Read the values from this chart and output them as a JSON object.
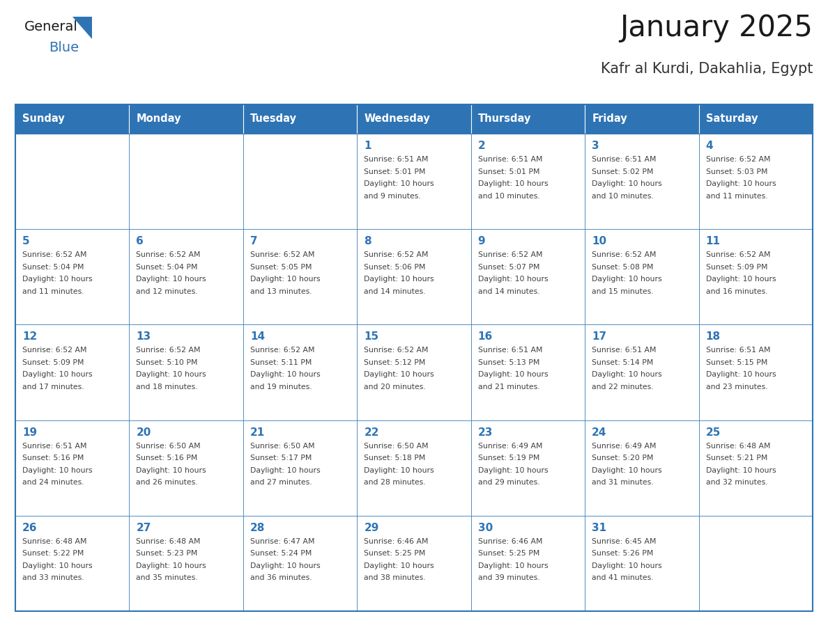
{
  "title": "January 2025",
  "subtitle": "Kafr al Kurdi, Dakahlia, Egypt",
  "days_of_week": [
    "Sunday",
    "Monday",
    "Tuesday",
    "Wednesday",
    "Thursday",
    "Friday",
    "Saturday"
  ],
  "header_bg": "#2E74B5",
  "header_text_color": "#FFFFFF",
  "cell_bg": "#FFFFFF",
  "cell_bg_alt": "#F5F5F5",
  "day_number_color": "#2E74B5",
  "text_color": "#404040",
  "border_color": "#2E74B5",
  "title_color": "#1a1a1a",
  "subtitle_color": "#333333",
  "logo_general_color": "#1a1a1a",
  "logo_blue_color": "#2E74B5",
  "calendar_data": [
    [
      {
        "day": null,
        "info": ""
      },
      {
        "day": null,
        "info": ""
      },
      {
        "day": null,
        "info": ""
      },
      {
        "day": 1,
        "info": "Sunrise: 6:51 AM\nSunset: 5:01 PM\nDaylight: 10 hours\nand 9 minutes."
      },
      {
        "day": 2,
        "info": "Sunrise: 6:51 AM\nSunset: 5:01 PM\nDaylight: 10 hours\nand 10 minutes."
      },
      {
        "day": 3,
        "info": "Sunrise: 6:51 AM\nSunset: 5:02 PM\nDaylight: 10 hours\nand 10 minutes."
      },
      {
        "day": 4,
        "info": "Sunrise: 6:52 AM\nSunset: 5:03 PM\nDaylight: 10 hours\nand 11 minutes."
      }
    ],
    [
      {
        "day": 5,
        "info": "Sunrise: 6:52 AM\nSunset: 5:04 PM\nDaylight: 10 hours\nand 11 minutes."
      },
      {
        "day": 6,
        "info": "Sunrise: 6:52 AM\nSunset: 5:04 PM\nDaylight: 10 hours\nand 12 minutes."
      },
      {
        "day": 7,
        "info": "Sunrise: 6:52 AM\nSunset: 5:05 PM\nDaylight: 10 hours\nand 13 minutes."
      },
      {
        "day": 8,
        "info": "Sunrise: 6:52 AM\nSunset: 5:06 PM\nDaylight: 10 hours\nand 14 minutes."
      },
      {
        "day": 9,
        "info": "Sunrise: 6:52 AM\nSunset: 5:07 PM\nDaylight: 10 hours\nand 14 minutes."
      },
      {
        "day": 10,
        "info": "Sunrise: 6:52 AM\nSunset: 5:08 PM\nDaylight: 10 hours\nand 15 minutes."
      },
      {
        "day": 11,
        "info": "Sunrise: 6:52 AM\nSunset: 5:09 PM\nDaylight: 10 hours\nand 16 minutes."
      }
    ],
    [
      {
        "day": 12,
        "info": "Sunrise: 6:52 AM\nSunset: 5:09 PM\nDaylight: 10 hours\nand 17 minutes."
      },
      {
        "day": 13,
        "info": "Sunrise: 6:52 AM\nSunset: 5:10 PM\nDaylight: 10 hours\nand 18 minutes."
      },
      {
        "day": 14,
        "info": "Sunrise: 6:52 AM\nSunset: 5:11 PM\nDaylight: 10 hours\nand 19 minutes."
      },
      {
        "day": 15,
        "info": "Sunrise: 6:52 AM\nSunset: 5:12 PM\nDaylight: 10 hours\nand 20 minutes."
      },
      {
        "day": 16,
        "info": "Sunrise: 6:51 AM\nSunset: 5:13 PM\nDaylight: 10 hours\nand 21 minutes."
      },
      {
        "day": 17,
        "info": "Sunrise: 6:51 AM\nSunset: 5:14 PM\nDaylight: 10 hours\nand 22 minutes."
      },
      {
        "day": 18,
        "info": "Sunrise: 6:51 AM\nSunset: 5:15 PM\nDaylight: 10 hours\nand 23 minutes."
      }
    ],
    [
      {
        "day": 19,
        "info": "Sunrise: 6:51 AM\nSunset: 5:16 PM\nDaylight: 10 hours\nand 24 minutes."
      },
      {
        "day": 20,
        "info": "Sunrise: 6:50 AM\nSunset: 5:16 PM\nDaylight: 10 hours\nand 26 minutes."
      },
      {
        "day": 21,
        "info": "Sunrise: 6:50 AM\nSunset: 5:17 PM\nDaylight: 10 hours\nand 27 minutes."
      },
      {
        "day": 22,
        "info": "Sunrise: 6:50 AM\nSunset: 5:18 PM\nDaylight: 10 hours\nand 28 minutes."
      },
      {
        "day": 23,
        "info": "Sunrise: 6:49 AM\nSunset: 5:19 PM\nDaylight: 10 hours\nand 29 minutes."
      },
      {
        "day": 24,
        "info": "Sunrise: 6:49 AM\nSunset: 5:20 PM\nDaylight: 10 hours\nand 31 minutes."
      },
      {
        "day": 25,
        "info": "Sunrise: 6:48 AM\nSunset: 5:21 PM\nDaylight: 10 hours\nand 32 minutes."
      }
    ],
    [
      {
        "day": 26,
        "info": "Sunrise: 6:48 AM\nSunset: 5:22 PM\nDaylight: 10 hours\nand 33 minutes."
      },
      {
        "day": 27,
        "info": "Sunrise: 6:48 AM\nSunset: 5:23 PM\nDaylight: 10 hours\nand 35 minutes."
      },
      {
        "day": 28,
        "info": "Sunrise: 6:47 AM\nSunset: 5:24 PM\nDaylight: 10 hours\nand 36 minutes."
      },
      {
        "day": 29,
        "info": "Sunrise: 6:46 AM\nSunset: 5:25 PM\nDaylight: 10 hours\nand 38 minutes."
      },
      {
        "day": 30,
        "info": "Sunrise: 6:46 AM\nSunset: 5:25 PM\nDaylight: 10 hours\nand 39 minutes."
      },
      {
        "day": 31,
        "info": "Sunrise: 6:45 AM\nSunset: 5:26 PM\nDaylight: 10 hours\nand 41 minutes."
      },
      {
        "day": null,
        "info": ""
      }
    ]
  ]
}
